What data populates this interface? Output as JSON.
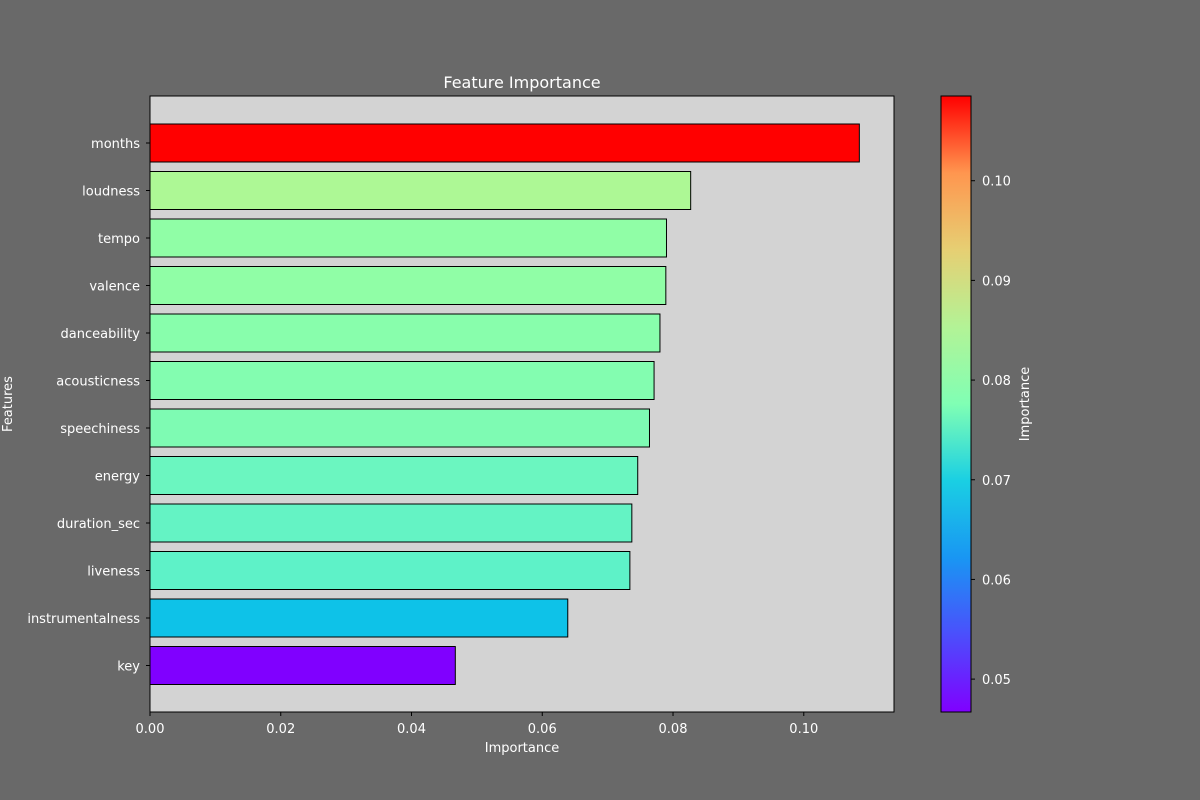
{
  "chart_data": {
    "type": "bar",
    "orientation": "horizontal",
    "title": "Feature Importance",
    "xlabel": "Importance",
    "ylabel": "Features",
    "xlim": [
      0,
      0.1138
    ],
    "x_ticks": [
      0.0,
      0.02,
      0.04,
      0.06,
      0.08,
      0.1
    ],
    "x_tick_labels": [
      "0.00",
      "0.02",
      "0.04",
      "0.06",
      "0.08",
      "0.10"
    ],
    "categories": [
      "months",
      "loudness",
      "tempo",
      "valence",
      "danceability",
      "acousticness",
      "speechiness",
      "energy",
      "duration_sec",
      "liveness",
      "instrumentalness",
      "key"
    ],
    "values": [
      0.1085,
      0.0827,
      0.079,
      0.0789,
      0.078,
      0.0771,
      0.0764,
      0.0746,
      0.0737,
      0.0734,
      0.0639,
      0.0467
    ],
    "bar_colors": [
      "#ff0000",
      "#adf895",
      "#90fea6",
      "#90fea6",
      "#88feac",
      "#83fdb0",
      "#7efbb3",
      "#6bf6c0",
      "#64f3c4",
      "#5ef2c8",
      "#0ec2e8",
      "#8000ff"
    ],
    "grid": false,
    "plot_background": "#d3d3d3",
    "figure_background": "#696969",
    "colorbar": {
      "label": "Importance",
      "colormap": "rainbow",
      "min": 0.0467,
      "max": 0.1085,
      "ticks": [
        0.05,
        0.06,
        0.07,
        0.08,
        0.09,
        0.1
      ],
      "tick_labels": [
        "0.05",
        "0.06",
        "0.07",
        "0.08",
        "0.09",
        "0.10"
      ]
    }
  }
}
